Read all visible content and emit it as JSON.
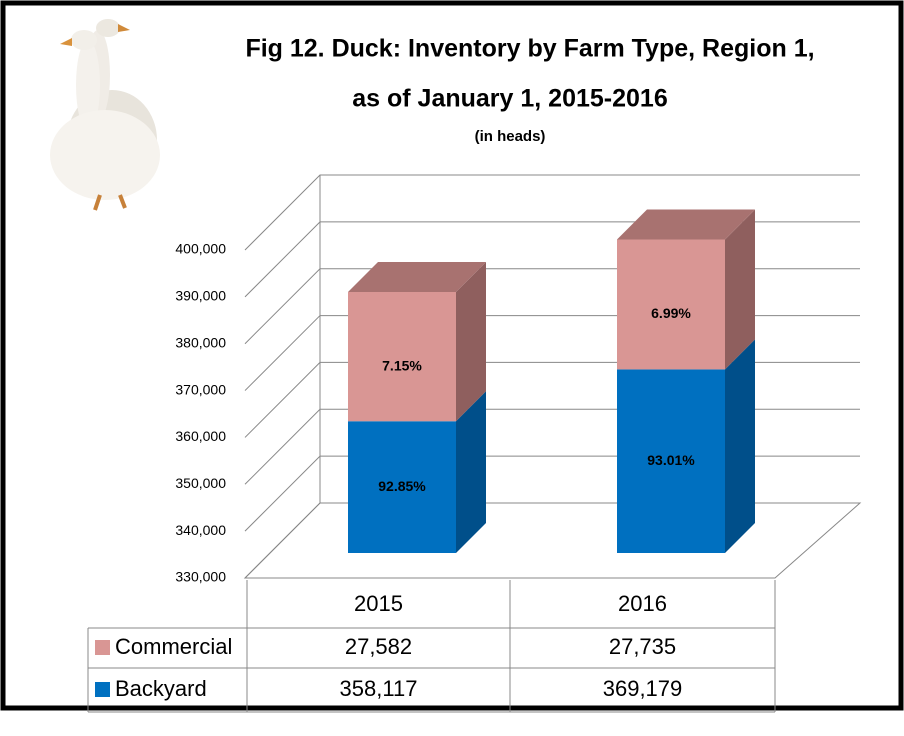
{
  "chart_data": {
    "type": "bar3d_stacked",
    "title": [
      "Fig 12. Duck: Inventory by Farm Type, Region 1,",
      "as of January 1, 2015-2016"
    ],
    "subtitle": "(in heads)",
    "categories": [
      "2015",
      "2016"
    ],
    "series": [
      {
        "name": "Backyard",
        "color": "#0070c0",
        "values": [
          358117,
          369179
        ],
        "value_labels": [
          "92.85%",
          "93.01%"
        ],
        "table_values": [
          "358,117",
          "369,179"
        ]
      },
      {
        "name": "Commercial",
        "color": "#d99694",
        "values": [
          27582,
          27735
        ],
        "value_labels": [
          "7.15%",
          "6.99%"
        ],
        "table_values": [
          "27,582",
          "27,735"
        ]
      }
    ],
    "ylim": [
      330000,
      400000
    ],
    "yticks": [
      {
        "value": 330000,
        "label": "330,000"
      },
      {
        "value": 340000,
        "label": "340,000"
      },
      {
        "value": 350000,
        "label": "350,000"
      },
      {
        "value": 360000,
        "label": "360,000"
      },
      {
        "value": 370000,
        "label": "370,000"
      },
      {
        "value": 380000,
        "label": "380,000"
      },
      {
        "value": 390000,
        "label": "390,000"
      },
      {
        "value": 400000,
        "label": "400,000"
      }
    ],
    "grid": true
  }
}
